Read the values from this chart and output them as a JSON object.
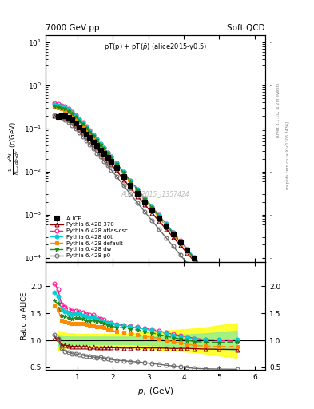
{
  "title_left": "7000 GeV pp",
  "title_right": "Soft QCD",
  "subtitle": "pT(p) + pT($\\bar{p}$) (alice2015-y0.5)",
  "ylabel_main": "$\\frac{1}{N_{inel}}\\frac{d^2N}{dp_{T}dy}$ (c/GeV)",
  "ylabel_ratio": "Ratio to ALICE",
  "xlabel": "$p_T$ (GeV)",
  "watermark": "ALICE_2015_I1357424",
  "right_label": "Rivet 3.1.10, ≥ 2M events",
  "right_label2": "mcplots.cern.ch [arXiv:1306.3436]",
  "xlim": [
    0.1,
    6.3
  ],
  "ylim_main": [
    8e-05,
    15
  ],
  "ylim_ratio": [
    0.45,
    2.45
  ],
  "ratio_yticks": [
    0.5,
    1.0,
    1.5,
    2.0
  ],
  "alice_x": [
    0.45,
    0.55,
    0.65,
    0.75,
    0.85,
    0.95,
    1.05,
    1.15,
    1.25,
    1.35,
    1.45,
    1.55,
    1.65,
    1.75,
    1.85,
    1.95,
    2.1,
    2.3,
    2.5,
    2.7,
    2.9,
    3.1,
    3.3,
    3.5,
    3.7,
    3.9,
    4.1,
    4.3,
    4.6,
    5.0,
    5.5
  ],
  "alice_y": [
    0.19,
    0.21,
    0.2,
    0.18,
    0.158,
    0.132,
    0.11,
    0.091,
    0.075,
    0.061,
    0.049,
    0.04,
    0.032,
    0.026,
    0.021,
    0.017,
    0.0123,
    0.0077,
    0.0049,
    0.0031,
    0.002,
    0.00128,
    0.00083,
    0.00054,
    0.000352,
    0.000229,
    0.000149,
    9.75e-05,
    5.1e-05,
    1.93e-05,
    6.41e-06
  ],
  "alice_yerr_lo": [
    0.008,
    0.009,
    0.009,
    0.008,
    0.007,
    0.006,
    0.005,
    0.004,
    0.003,
    0.003,
    0.002,
    0.0018,
    0.0014,
    0.0011,
    0.0009,
    0.0007,
    0.0005,
    0.0003,
    0.0002,
    0.00013,
    8e-05,
    5.2e-05,
    3.4e-05,
    2.2e-05,
    1.4e-05,
    9.3e-06,
    6.1e-06,
    4e-06,
    2.1e-06,
    8e-07,
    2.8e-07
  ],
  "alice_yerr_hi": [
    0.008,
    0.009,
    0.009,
    0.008,
    0.007,
    0.006,
    0.005,
    0.004,
    0.003,
    0.003,
    0.002,
    0.0018,
    0.0014,
    0.0011,
    0.0009,
    0.0007,
    0.0005,
    0.0003,
    0.0002,
    0.00013,
    8e-05,
    5.2e-05,
    3.4e-05,
    2.2e-05,
    1.4e-05,
    9.3e-06,
    6.1e-06,
    4e-06,
    2.1e-06,
    8e-07,
    2.8e-07
  ],
  "pythia_x": [
    0.35,
    0.45,
    0.55,
    0.65,
    0.75,
    0.85,
    0.95,
    1.05,
    1.15,
    1.25,
    1.35,
    1.45,
    1.55,
    1.65,
    1.75,
    1.85,
    1.95,
    2.1,
    2.3,
    2.5,
    2.7,
    2.9,
    3.1,
    3.3,
    3.5,
    3.7,
    3.9,
    4.1,
    4.3,
    4.6,
    5.0,
    5.5
  ],
  "py370_y": [
    0.2,
    0.195,
    0.192,
    0.182,
    0.162,
    0.14,
    0.117,
    0.097,
    0.08,
    0.066,
    0.053,
    0.043,
    0.035,
    0.028,
    0.0225,
    0.0181,
    0.0147,
    0.0106,
    0.0066,
    0.0042,
    0.00268,
    0.00172,
    0.0011,
    0.000713,
    0.000462,
    0.000299,
    0.000195,
    0.000127,
    8.25e-05,
    4.28e-05,
    1.61e-05,
    5.33e-06
  ],
  "py370_color": "#8B0000",
  "py370_label": "Pythia 6.428 370",
  "pyatlas_y": [
    0.39,
    0.37,
    0.35,
    0.325,
    0.285,
    0.245,
    0.205,
    0.169,
    0.138,
    0.112,
    0.09,
    0.072,
    0.057,
    0.045,
    0.036,
    0.028,
    0.0225,
    0.016,
    0.0099,
    0.00618,
    0.00388,
    0.00244,
    0.00154,
    0.000973,
    0.000617,
    0.000392,
    0.000249,
    0.000159,
    0.000101,
    5.2e-05,
    1.93e-05,
    6.3e-06
  ],
  "pyatlas_color": "#FF1493",
  "pyatlas_label": "Pythia 6.428 atlas-csc",
  "pyd6t_y": [
    0.36,
    0.345,
    0.33,
    0.308,
    0.272,
    0.234,
    0.197,
    0.163,
    0.133,
    0.108,
    0.087,
    0.07,
    0.056,
    0.044,
    0.035,
    0.0279,
    0.0222,
    0.0158,
    0.00978,
    0.00611,
    0.00383,
    0.00241,
    0.00152,
    0.000959,
    0.000608,
    0.000386,
    0.000246,
    0.000157,
    0.0001,
    5.19e-05,
    1.95e-05,
    6.49e-06
  ],
  "pyd6t_color": "#00CED1",
  "pyd6t_label": "Pythia 6.428 d6t",
  "pydefault_y": [
    0.31,
    0.3,
    0.288,
    0.27,
    0.24,
    0.207,
    0.174,
    0.145,
    0.119,
    0.097,
    0.078,
    0.063,
    0.05,
    0.04,
    0.032,
    0.0254,
    0.0202,
    0.0143,
    0.00886,
    0.00551,
    0.00344,
    0.00216,
    0.00136,
    0.000857,
    0.000542,
    0.000343,
    0.000218,
    0.000139,
    8.82e-05,
    4.56e-05,
    1.71e-05,
    5.69e-06
  ],
  "pydefault_color": "#FF8C00",
  "pydefault_label": "Pythia 6.428 default",
  "pydw_y": [
    0.33,
    0.318,
    0.306,
    0.288,
    0.256,
    0.221,
    0.186,
    0.155,
    0.127,
    0.103,
    0.083,
    0.067,
    0.054,
    0.043,
    0.034,
    0.027,
    0.0215,
    0.0153,
    0.00948,
    0.00591,
    0.0037,
    0.00232,
    0.00146,
    0.000921,
    0.000583,
    0.00037,
    0.000235,
    0.00015,
    9.53e-05,
    4.94e-05,
    1.86e-05,
    6.21e-06
  ],
  "pydw_color": "#228B22",
  "pydw_label": "Pythia 6.428 dw",
  "pyp0_y": [
    0.21,
    0.195,
    0.178,
    0.16,
    0.14,
    0.119,
    0.099,
    0.081,
    0.066,
    0.053,
    0.043,
    0.034,
    0.027,
    0.022,
    0.0173,
    0.0138,
    0.011,
    0.00779,
    0.00481,
    0.00298,
    0.00186,
    0.00117,
    0.000735,
    0.000463,
    0.000292,
    0.000185,
    0.000117,
    7.42e-05,
    4.7e-05,
    2.42e-05,
    9.03e-06,
    2.98e-06
  ],
  "pyp0_color": "#696969",
  "pyp0_label": "Pythia 6.428 p0",
  "band_yellow_x": [
    0.45,
    0.55,
    0.65,
    0.75,
    0.85,
    0.95,
    1.05,
    1.15,
    1.25,
    1.35,
    1.45,
    1.55,
    1.65,
    1.75,
    1.85,
    1.95,
    2.1,
    2.3,
    2.5,
    2.7,
    2.9,
    3.1,
    3.3,
    3.5,
    3.7,
    3.9,
    4.1,
    4.3,
    4.6,
    5.0,
    5.5
  ],
  "band_yellow_lo": [
    0.82,
    0.84,
    0.86,
    0.87,
    0.87,
    0.88,
    0.88,
    0.88,
    0.88,
    0.88,
    0.88,
    0.88,
    0.88,
    0.88,
    0.88,
    0.88,
    0.88,
    0.88,
    0.87,
    0.86,
    0.85,
    0.84,
    0.83,
    0.82,
    0.81,
    0.8,
    0.79,
    0.78,
    0.76,
    0.72,
    0.68
  ],
  "band_yellow_hi": [
    1.18,
    1.16,
    1.14,
    1.13,
    1.13,
    1.12,
    1.12,
    1.12,
    1.12,
    1.12,
    1.12,
    1.12,
    1.12,
    1.12,
    1.12,
    1.12,
    1.12,
    1.12,
    1.13,
    1.14,
    1.15,
    1.16,
    1.17,
    1.18,
    1.19,
    1.2,
    1.21,
    1.22,
    1.24,
    1.28,
    1.32
  ],
  "band_green_lo": [
    0.9,
    0.91,
    0.92,
    0.93,
    0.93,
    0.93,
    0.93,
    0.93,
    0.93,
    0.93,
    0.93,
    0.93,
    0.93,
    0.93,
    0.93,
    0.93,
    0.93,
    0.93,
    0.93,
    0.92,
    0.92,
    0.91,
    0.91,
    0.9,
    0.9,
    0.89,
    0.89,
    0.88,
    0.87,
    0.85,
    0.82
  ],
  "band_green_hi": [
    1.1,
    1.09,
    1.08,
    1.07,
    1.07,
    1.07,
    1.07,
    1.07,
    1.07,
    1.07,
    1.07,
    1.07,
    1.07,
    1.07,
    1.07,
    1.07,
    1.07,
    1.07,
    1.07,
    1.08,
    1.08,
    1.09,
    1.09,
    1.1,
    1.1,
    1.11,
    1.11,
    1.12,
    1.13,
    1.15,
    1.18
  ]
}
